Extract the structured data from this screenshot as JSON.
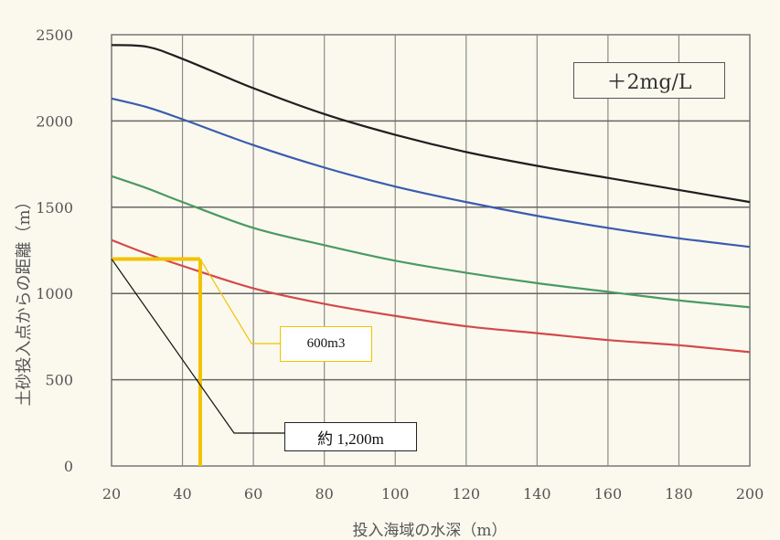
{
  "chart_data": {
    "type": "line",
    "xlabel": "投入海域の水深（m）",
    "ylabel": "土砂投入点からの距離（m）",
    "xlim": [
      20,
      200
    ],
    "ylim": [
      0,
      2500
    ],
    "x_ticks": [
      20,
      40,
      60,
      80,
      100,
      120,
      140,
      160,
      180,
      200
    ],
    "y_ticks": [
      0,
      500,
      1000,
      1500,
      2000,
      2500
    ],
    "annotation_box": "＋2mg/L",
    "grid": true,
    "series": [
      {
        "color": "#1f1f1f",
        "x": [
          20,
          30,
          40,
          60,
          80,
          100,
          120,
          140,
          160,
          180,
          200
        ],
        "values": [
          2440,
          2430,
          2360,
          2190,
          2040,
          1920,
          1820,
          1740,
          1670,
          1600,
          1530
        ]
      },
      {
        "color": "#3a5cb0",
        "x": [
          20,
          30,
          40,
          60,
          80,
          100,
          120,
          140,
          160,
          180,
          200
        ],
        "values": [
          2130,
          2080,
          2010,
          1860,
          1730,
          1620,
          1530,
          1450,
          1380,
          1320,
          1270
        ]
      },
      {
        "color": "#4a9a62",
        "x": [
          20,
          30,
          40,
          60,
          80,
          100,
          120,
          140,
          160,
          180,
          200
        ],
        "values": [
          1680,
          1610,
          1530,
          1380,
          1280,
          1190,
          1120,
          1060,
          1010,
          960,
          920
        ]
      },
      {
        "color": "#d24a4a",
        "x": [
          20,
          30,
          40,
          60,
          80,
          100,
          120,
          140,
          160,
          180,
          200
        ],
        "values": [
          1310,
          1230,
          1160,
          1030,
          940,
          870,
          810,
          770,
          730,
          700,
          660
        ]
      }
    ],
    "highlight": {
      "color": "#f2c200",
      "y": 1200,
      "x_from": 20,
      "x_to": 45
    }
  },
  "callouts": {
    "volume": "600m3",
    "distance": "約 1,200m"
  }
}
